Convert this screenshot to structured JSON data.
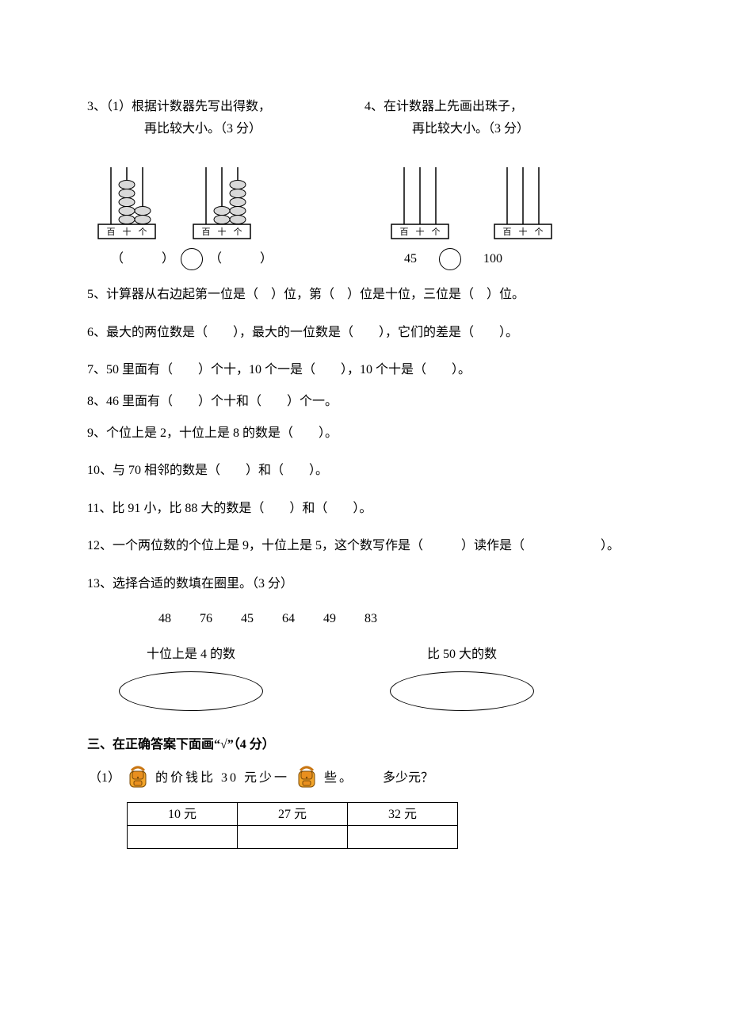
{
  "q3": {
    "line1": "3、（1）根据计数器先写出得数，",
    "line2": "再比较大小。（3 分）",
    "abacus_labels": [
      "百",
      "十",
      "个"
    ],
    "abacus1_beads": [
      0,
      5,
      2
    ],
    "abacus2_beads": [
      0,
      2,
      5
    ],
    "answer_left": "（　　　）",
    "answer_right": "（　　　）",
    "bead_fill": "#d9d9d9",
    "bead_stroke": "#000000"
  },
  "q4": {
    "line1": "4、在计数器上先画出珠子，",
    "line2": "再比较大小。（3 分）",
    "abacus_labels": [
      "百",
      "十",
      "个"
    ],
    "answer_left": "45",
    "answer_right": "100"
  },
  "q5": "5、计算器从右边起第一位是（　）位，第（　）位是十位，三位是（　）位。",
  "q6": "6、最大的两位数是（　　），最大的一位数是（　　），它们的差是（　　）。",
  "q7": "7、50 里面有（　　）个十，10 个一是（　　），10 个十是（　　）。",
  "q8": "8、46 里面有（　　）个十和（　　）个一。",
  "q9": "9、个位上是 2，十位上是 8 的数是（　　）。",
  "q10": "10、与 70 相邻的数是（　　）和（　　）。",
  "q11": "11、比 91 小，比 88 大的数是（　　）和（　　）。",
  "q12": "12、一个两位数的个位上是 9，十位上是 5，这个数写作是（　　　）读作是（　　　　　　）。",
  "q13": {
    "prompt": "13、选择合适的数填在圈里。（3 分）",
    "numbers": [
      "48",
      "76",
      "45",
      "64",
      "49",
      "83"
    ],
    "label_left": "十位上是 4 的数",
    "label_right": "比 50 大的数"
  },
  "section3": {
    "header": "三、在正确答案下面画“√”（4 分）",
    "sub1_prefix": "（1）",
    "sub1_text1": "的价钱比 30 元少一",
    "sub1_text2": "些。",
    "sub1_text3": "多少元？",
    "options": [
      "10 元",
      "27 元",
      "32 元"
    ],
    "bag": {
      "body_fill": "#f3a52a",
      "flap_fill": "#e98f1e",
      "strap_fill": "#c97612",
      "stroke": "#7a4b0a"
    }
  },
  "colors": {
    "text": "#000000",
    "background": "#ffffff"
  }
}
